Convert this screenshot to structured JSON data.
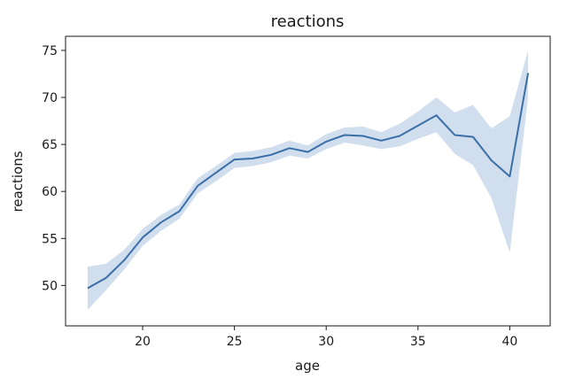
{
  "chart_data": {
    "type": "line",
    "title": "reactions",
    "xlabel": "age",
    "ylabel": "reactions",
    "xlim": [
      15.8,
      42.2
    ],
    "ylim": [
      45.7,
      76.5
    ],
    "xticks": [
      20,
      25,
      30,
      35,
      40
    ],
    "yticks": [
      50,
      55,
      60,
      65,
      70,
      75
    ],
    "grid": false,
    "legend": "none",
    "colors": {
      "line": "#3a6fa8",
      "band": "#c8d8eb"
    },
    "series": [
      {
        "x": [
          17,
          18,
          19,
          20,
          21,
          22,
          23,
          24,
          25,
          26,
          27,
          28,
          29,
          30,
          31,
          32,
          33,
          34,
          35,
          36,
          37,
          38,
          39,
          40,
          41
        ],
        "values": [
          49.7,
          50.8,
          52.7,
          55.1,
          56.7,
          57.9,
          60.6,
          62.0,
          63.4,
          63.5,
          63.9,
          64.6,
          64.2,
          65.3,
          66.0,
          65.9,
          65.4,
          65.9,
          67.0,
          68.1,
          66.0,
          65.8,
          63.3,
          61.6,
          72.6
        ],
        "lower": [
          47.4,
          49.5,
          51.7,
          54.2,
          55.8,
          57.1,
          59.8,
          61.1,
          62.5,
          62.7,
          63.1,
          63.8,
          63.5,
          64.5,
          65.2,
          64.9,
          64.5,
          64.8,
          65.6,
          66.3,
          64.0,
          62.8,
          59.3,
          53.5,
          70.0
        ],
        "upper": [
          52.0,
          52.3,
          53.8,
          56.0,
          57.5,
          58.6,
          61.4,
          62.7,
          64.1,
          64.3,
          64.7,
          65.4,
          64.9,
          66.1,
          66.8,
          66.9,
          66.3,
          67.2,
          68.5,
          70.0,
          68.4,
          69.2,
          66.7,
          68.0,
          75.0
        ]
      }
    ]
  }
}
